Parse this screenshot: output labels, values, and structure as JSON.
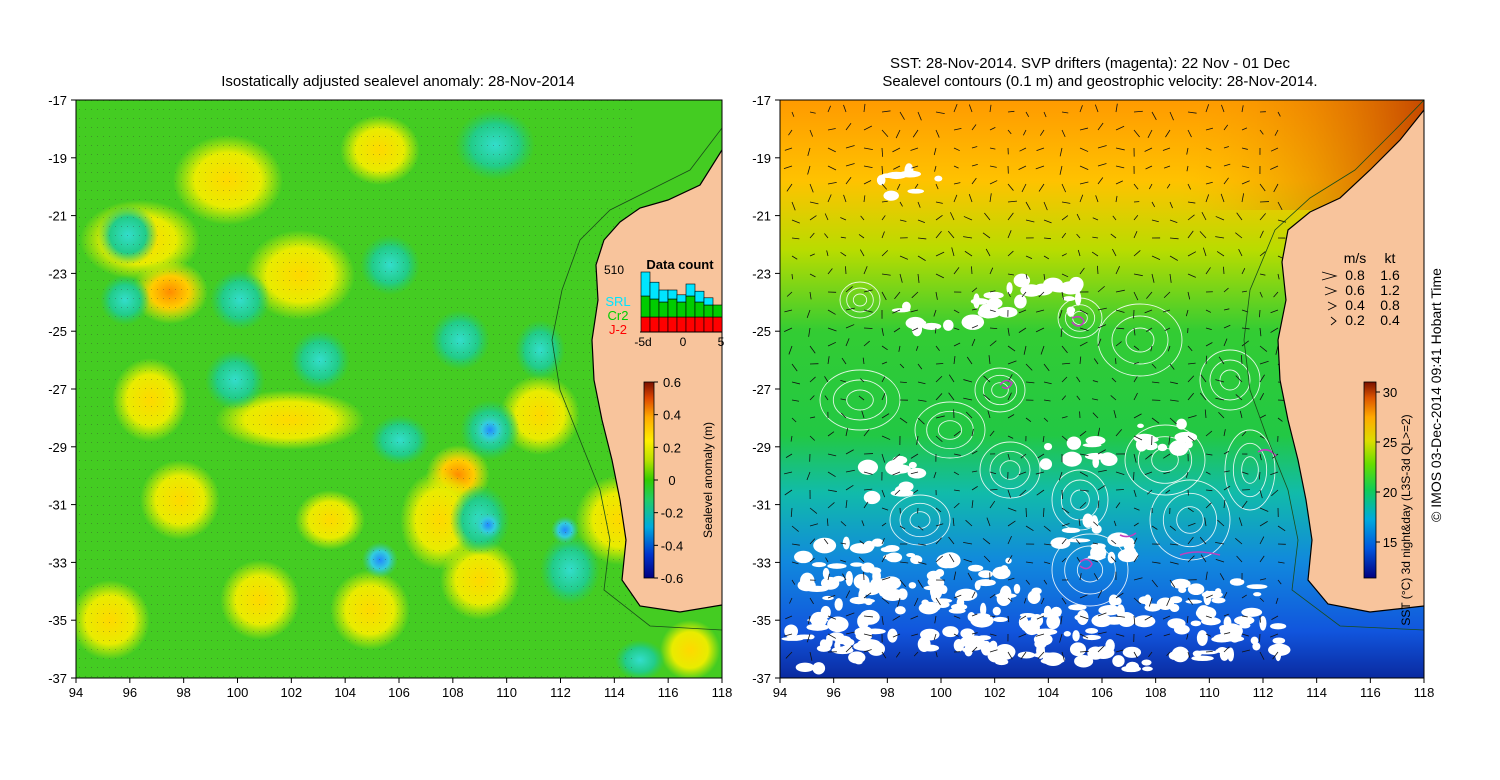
{
  "left_panel": {
    "title": "Isostatically adjusted sealevel anomaly: 28-Nov-2014",
    "x_ticks": [
      "94",
      "96",
      "98",
      "100",
      "102",
      "104",
      "106",
      "108",
      "110",
      "112",
      "114",
      "116",
      "118"
    ],
    "y_ticks": [
      "-17",
      "-19",
      "-21",
      "-23",
      "-25",
      "-27",
      "-29",
      "-31",
      "-33",
      "-35",
      "-37"
    ],
    "data_count": {
      "title": "Data count",
      "max_label": "510",
      "x_ticks": [
        "-5d",
        "0",
        "5"
      ],
      "legend": [
        {
          "label": "SRL",
          "color": "#00e5ff"
        },
        {
          "label": "Cr2",
          "color": "#00cc00"
        },
        {
          "label": "J-2",
          "color": "#ff0000"
        }
      ],
      "bars": [
        {
          "day": -4,
          "J2": 0.25,
          "Cr2": 0.35,
          "SRL": 0.4
        },
        {
          "day": -3,
          "J2": 0.25,
          "Cr2": 0.3,
          "SRL": 0.28
        },
        {
          "day": -2,
          "J2": 0.25,
          "Cr2": 0.25,
          "SRL": 0.2
        },
        {
          "day": -1,
          "J2": 0.25,
          "Cr2": 0.3,
          "SRL": 0.15
        },
        {
          "day": 0,
          "J2": 0.25,
          "Cr2": 0.25,
          "SRL": 0.12
        },
        {
          "day": 1,
          "J2": 0.25,
          "Cr2": 0.35,
          "SRL": 0.2
        },
        {
          "day": 2,
          "J2": 0.25,
          "Cr2": 0.25,
          "SRL": 0.18
        },
        {
          "day": 3,
          "J2": 0.25,
          "Cr2": 0.2,
          "SRL": 0.12
        },
        {
          "day": 4,
          "J2": 0.25,
          "Cr2": 0.2,
          "SRL": 0.0
        }
      ]
    },
    "colorbar": {
      "label": "Sealevel anomaly (m)",
      "ticks": [
        "0.6",
        "0.4",
        "0.2",
        "0",
        "-0.2",
        "-0.4",
        "-0.6"
      ]
    }
  },
  "right_panel": {
    "title_line1": "SST: 28-Nov-2014. SVP drifters (magenta): 22 Nov - 01 Dec",
    "title_line2": "Sealevel contours (0.1 m) and geostrophic velocity: 28-Nov-2014.",
    "x_ticks": [
      "94",
      "96",
      "98",
      "100",
      "102",
      "104",
      "106",
      "108",
      "110",
      "112",
      "114",
      "116",
      "118"
    ],
    "y_ticks": [
      "-17",
      "-19",
      "-21",
      "-23",
      "-25",
      "-27",
      "-29",
      "-31",
      "-33",
      "-35",
      "-37"
    ],
    "velocity_key": {
      "header_ms": "m/s",
      "header_kt": "kt",
      "rows": [
        {
          "ms": "0.8",
          "kt": "1.6"
        },
        {
          "ms": "0.6",
          "kt": "1.2"
        },
        {
          "ms": "0.4",
          "kt": "0.8"
        },
        {
          "ms": "0.2",
          "kt": "0.4"
        }
      ]
    },
    "colorbar": {
      "label": "SST (°C) 3d night&day (L3S-3d QL>=2)",
      "ticks": [
        "30",
        "25",
        "20",
        "15"
      ]
    }
  },
  "credit": "© IMOS 03-Dec-2014 09:41 Hobart Time",
  "colors": {
    "land": "#f8c49c",
    "coast": "#000000",
    "cloud": "#ffffff",
    "contour": "#ffffff",
    "drifter": "#c040c0"
  }
}
